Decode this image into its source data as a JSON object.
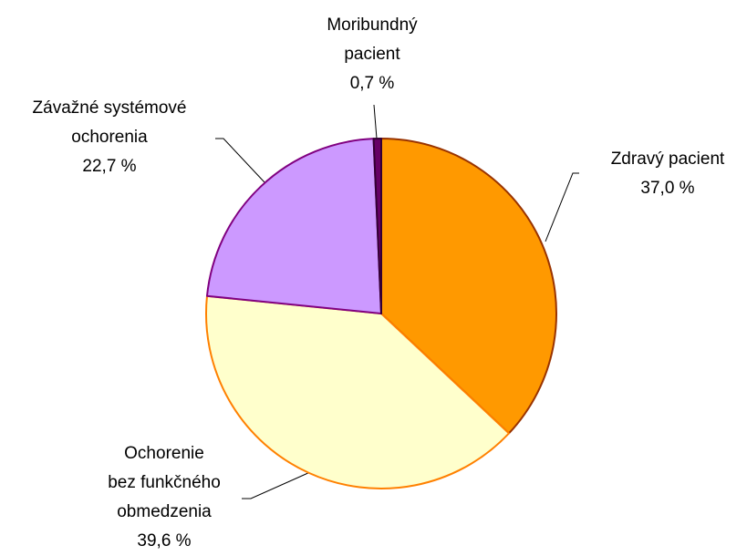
{
  "chart_data": {
    "type": "pie",
    "categories": [
      "Zdravý pacient",
      "Ochorenie\nbez funkčného\nobmedzenia",
      "Závažné systémové\nochorenia",
      "Moribundný\npacient"
    ],
    "values": [
      37.0,
      39.6,
      22.7,
      0.7
    ],
    "value_labels": [
      "37,0 %",
      "39,6 %",
      "22,7 %",
      "0,7 %"
    ],
    "colors": [
      "#FF9900",
      "#FFFFCC",
      "#CC99FF",
      "#660066"
    ],
    "edge_colors": [
      "#993300",
      "#FF8000",
      "#800080",
      "#330033"
    ]
  }
}
